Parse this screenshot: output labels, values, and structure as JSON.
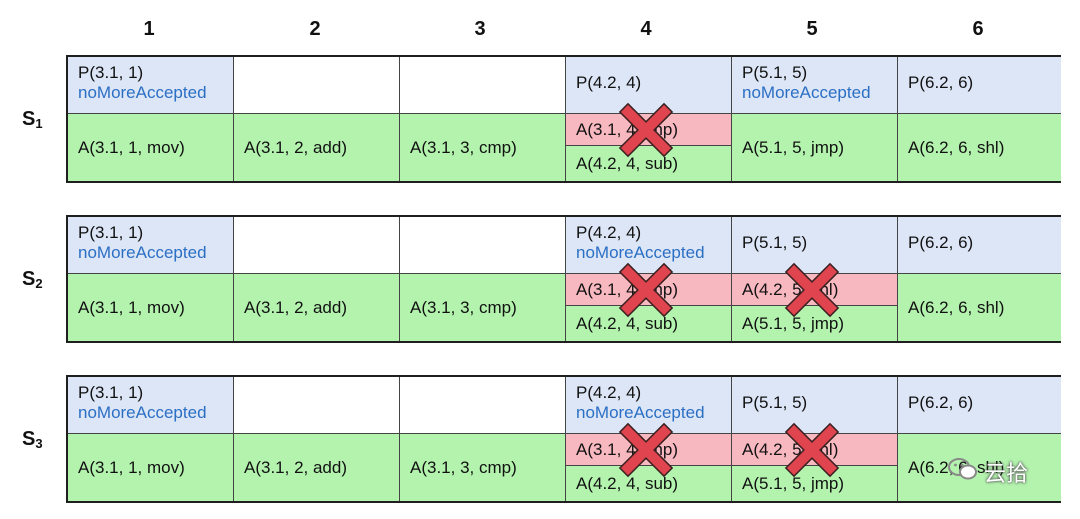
{
  "column_headers": [
    "1",
    "2",
    "3",
    "4",
    "5",
    "6"
  ],
  "rows": [
    {
      "label": "S",
      "subscript": "1",
      "p": [
        {
          "text": "P(3.1, 1)",
          "note": "noMoreAccepted"
        },
        {
          "text": "",
          "note": ""
        },
        {
          "text": "",
          "note": ""
        },
        {
          "text": "P(4.2, 4)",
          "note": ""
        },
        {
          "text": "P(5.1, 5)",
          "note": "noMoreAccepted"
        },
        {
          "text": "P(6.2, 6)",
          "note": ""
        }
      ],
      "a": [
        {
          "text": "A(3.1, 1, mov)"
        },
        {
          "text": "A(3.1, 2, add)"
        },
        {
          "text": "A(3.1, 3, cmp)"
        },
        {
          "rejected": "A(3.1, 4, jmp)",
          "accepted": "A(4.2, 4, sub)"
        },
        {
          "text": "A(5.1, 5, jmp)"
        },
        {
          "text": "A(6.2, 6, shl)"
        }
      ]
    },
    {
      "label": "S",
      "subscript": "2",
      "p": [
        {
          "text": "P(3.1, 1)",
          "note": "noMoreAccepted"
        },
        {
          "text": "",
          "note": ""
        },
        {
          "text": "",
          "note": ""
        },
        {
          "text": "P(4.2, 4)",
          "note": "noMoreAccepted"
        },
        {
          "text": "P(5.1, 5)",
          "note": ""
        },
        {
          "text": "P(6.2, 6)",
          "note": ""
        }
      ],
      "a": [
        {
          "text": "A(3.1, 1, mov)"
        },
        {
          "text": "A(3.1, 2, add)"
        },
        {
          "text": "A(3.1, 3, cmp)"
        },
        {
          "rejected": "A(3.1, 4, jmp)",
          "accepted": "A(4.2, 4, sub)"
        },
        {
          "rejected": "A(4.2, 5, shl)",
          "accepted": "A(5.1, 5, jmp)"
        },
        {
          "text": "A(6.2, 6, shl)"
        }
      ]
    },
    {
      "label": "S",
      "subscript": "3",
      "p": [
        {
          "text": "P(3.1, 1)",
          "note": "noMoreAccepted"
        },
        {
          "text": "",
          "note": ""
        },
        {
          "text": "",
          "note": ""
        },
        {
          "text": "P(4.2, 4)",
          "note": "noMoreAccepted"
        },
        {
          "text": "P(5.1, 5)",
          "note": ""
        },
        {
          "text": "P(6.2, 6)",
          "note": ""
        }
      ],
      "a": [
        {
          "text": "A(3.1, 1, mov)"
        },
        {
          "text": "A(3.1, 2, add)"
        },
        {
          "text": "A(3.1, 3, cmp)"
        },
        {
          "rejected": "A(3.1, 4, jmp)",
          "accepted": "A(4.2, 4, sub)"
        },
        {
          "rejected": "A(4.2, 5, shl)",
          "accepted": "A(5.1, 5, jmp)"
        },
        {
          "text": "A(6.2, 6, shl)"
        }
      ]
    }
  ],
  "watermark": {
    "icon": "wechat-icon",
    "text": "云拾"
  },
  "colors": {
    "p_cell": "#dce6f7",
    "a_cell": "#b3f3ae",
    "rejected": "#f8b8c0",
    "note": "#2b6fc4",
    "cross": "#e0454f"
  }
}
